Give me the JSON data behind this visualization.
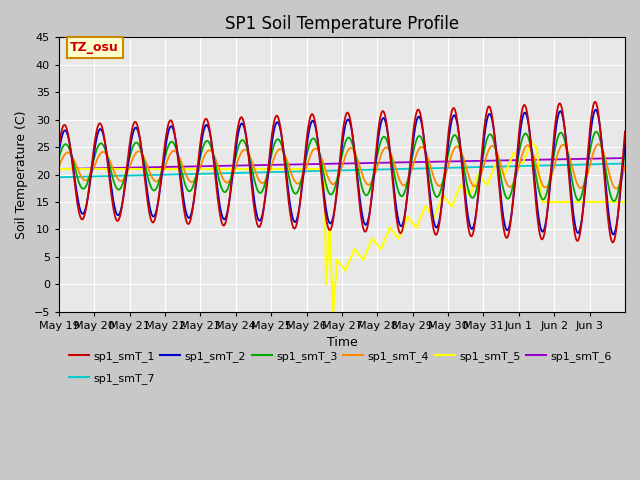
{
  "title": "SP1 Soil Temperature Profile",
  "xlabel": "Time",
  "ylabel": "Soil Temperature (C)",
  "ylim": [
    -5,
    45
  ],
  "n_days": 16,
  "background_color": "#e8e8e8",
  "grid_color": "white",
  "tz_label": "TZ_osu",
  "tz_box_facecolor": "#ffffcc",
  "tz_box_edgecolor": "#cc8800",
  "tz_text_color": "#cc0000",
  "colors": {
    "sp1_smT_1": "#cc0000",
    "sp1_smT_2": "#0000cc",
    "sp1_smT_3": "#00aa00",
    "sp1_smT_4": "#ff8800",
    "sp1_smT_5": "#ffff00",
    "sp1_smT_6": "#9900cc",
    "sp1_smT_7": "#00cccc"
  },
  "x_tick_labels": [
    "May 19",
    "May 20",
    "May 21",
    "May 22",
    "May 23",
    "May 24",
    "May 25",
    "May 26",
    "May 27",
    "May 28",
    "May 29",
    "May 30",
    "May 31",
    "Jun 1",
    "Jun 2",
    "Jun 3"
  ],
  "legend_labels": [
    "sp1_smT_1",
    "sp1_smT_2",
    "sp1_smT_3",
    "sp1_smT_4",
    "sp1_smT_5",
    "sp1_smT_6",
    "sp1_smT_7"
  ],
  "legend_ncol_row1": 6,
  "legend_ncol_row2": 1,
  "figsize": [
    6.4,
    4.8
  ],
  "dpi": 100
}
